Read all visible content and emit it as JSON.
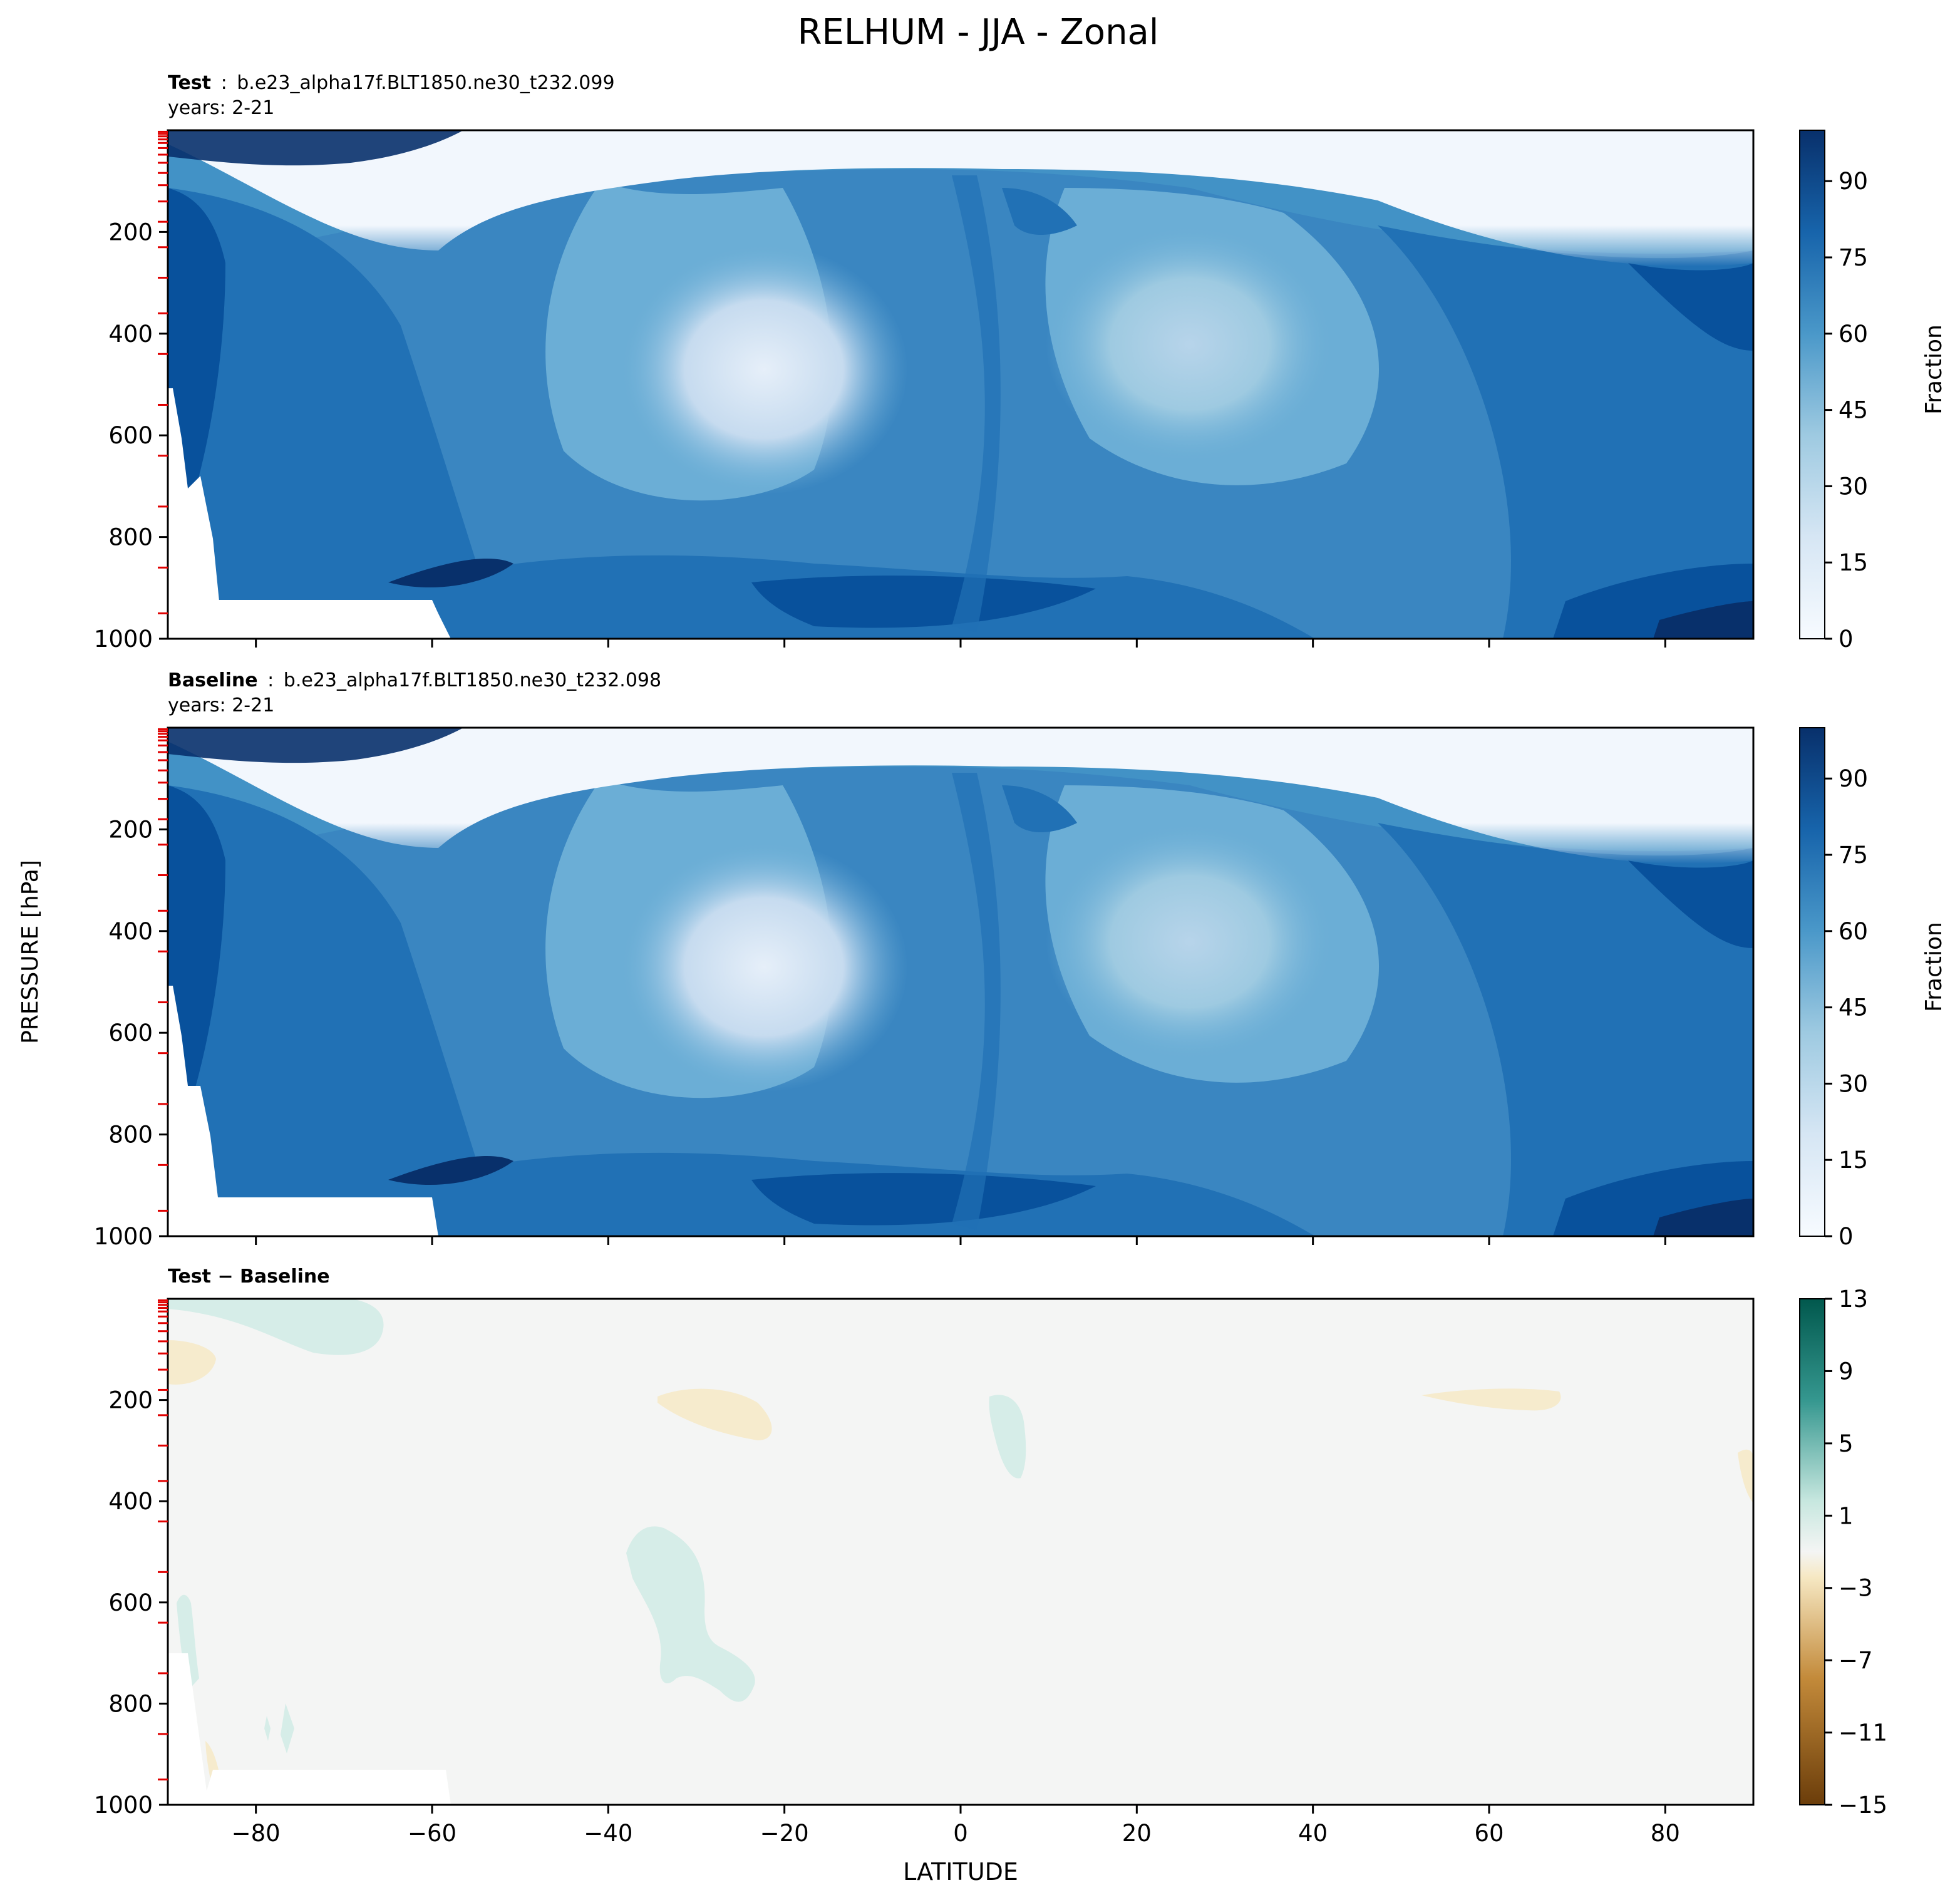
{
  "figure": {
    "title": "RELHUM - JJA - Zonal",
    "ylabel": "PRESSURE [hPa]",
    "xlabel": "LATITUDE"
  },
  "chart_data": [
    {
      "type": "heatmap",
      "label_bold": "Test",
      "label_sep": ":",
      "case": "b.e23_alpha17f.BLT1850.ne30_t232.099",
      "years": "years: 2-21",
      "xlim": [
        -90,
        90
      ],
      "ylim": [
        1000,
        0
      ],
      "yticks": [
        200,
        400,
        600,
        800,
        1000
      ],
      "ytick_labels": [
        "200",
        "400",
        "600",
        "800",
        "1000"
      ],
      "xticks": [
        -80,
        -60,
        -40,
        -20,
        0,
        20,
        40,
        60,
        80
      ],
      "colorbar_label": "Fraction",
      "colorbar_range": [
        0,
        100
      ],
      "colorbar_ticks": [
        0,
        15,
        30,
        45,
        60,
        75,
        90
      ],
      "colorbar_tick_labels": [
        "0",
        "15",
        "30",
        "45",
        "60",
        "75",
        "90"
      ],
      "colormap": [
        "#f7fbff",
        "#deebf7",
        "#c6dbef",
        "#9ecae1",
        "#6baed6",
        "#4292c6",
        "#2171b5",
        "#08519c",
        "#08306b"
      ]
    },
    {
      "type": "heatmap",
      "label_bold": "Baseline",
      "label_sep": ":",
      "case": "b.e23_alpha17f.BLT1850.ne30_t232.098",
      "years": "years: 2-21",
      "xlim": [
        -90,
        90
      ],
      "ylim": [
        1000,
        0
      ],
      "yticks": [
        200,
        400,
        600,
        800,
        1000
      ],
      "ytick_labels": [
        "200",
        "400",
        "600",
        "800",
        "1000"
      ],
      "xticks": [
        -80,
        -60,
        -40,
        -20,
        0,
        20,
        40,
        60,
        80
      ],
      "colorbar_label": "Fraction",
      "colorbar_range": [
        0,
        100
      ],
      "colorbar_ticks": [
        0,
        15,
        30,
        45,
        60,
        75,
        90
      ],
      "colorbar_tick_labels": [
        "0",
        "15",
        "30",
        "45",
        "60",
        "75",
        "90"
      ],
      "colormap": [
        "#f7fbff",
        "#deebf7",
        "#c6dbef",
        "#9ecae1",
        "#6baed6",
        "#4292c6",
        "#2171b5",
        "#08519c",
        "#08306b"
      ]
    },
    {
      "type": "heatmap",
      "title": "Test − Baseline",
      "xlim": [
        -90,
        90
      ],
      "ylim": [
        1000,
        0
      ],
      "yticks": [
        200,
        400,
        600,
        800,
        1000
      ],
      "ytick_labels": [
        "200",
        "400",
        "600",
        "800",
        "1000"
      ],
      "xticks": [
        -80,
        -60,
        -40,
        -20,
        0,
        20,
        40,
        60,
        80
      ],
      "xtick_labels": [
        "−80",
        "−60",
        "−40",
        "−20",
        "0",
        "20",
        "40",
        "60",
        "80"
      ],
      "colorbar_range": [
        -15,
        13
      ],
      "colorbar_ticks": [
        -15,
        -11,
        -7,
        -3,
        1,
        5,
        9,
        13
      ],
      "colorbar_tick_labels": [
        "−15",
        "−11",
        "−7",
        "−3",
        "1",
        "5",
        "9",
        "13"
      ],
      "colormap": [
        "#6b3d0a",
        "#8b510a",
        "#a86a1c",
        "#c38a3a",
        "#dbba6e",
        "#ebd59c",
        "#f6e8c3",
        "#f4f5f4",
        "#d3ece7",
        "#a5dacf",
        "#67b8ab",
        "#35978f",
        "#0f7a6e",
        "#01584d"
      ]
    }
  ]
}
